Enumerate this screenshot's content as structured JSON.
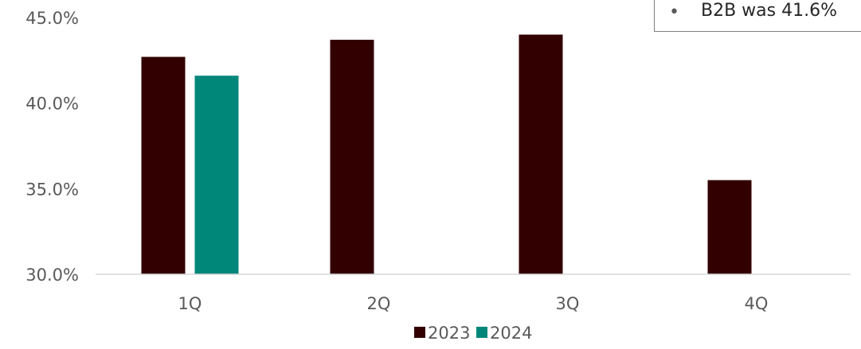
{
  "chart_data": {
    "type": "bar",
    "categories": [
      "1Q",
      "2Q",
      "3Q",
      "4Q"
    ],
    "series": [
      {
        "name": "2023",
        "values": [
          42.7,
          43.7,
          44.0,
          35.5
        ],
        "color": "#330000"
      },
      {
        "name": "2024",
        "values": [
          41.6,
          null,
          null,
          null
        ],
        "color": "#00877a"
      }
    ],
    "y_ticks": [
      "30.0%",
      "35.0%",
      "40.0%",
      "45.0%"
    ],
    "ylim": [
      30,
      45
    ],
    "grid": false,
    "legend_position": "bottom"
  },
  "annotation": {
    "bullet": "•",
    "text": "B2B was 41.6%"
  }
}
